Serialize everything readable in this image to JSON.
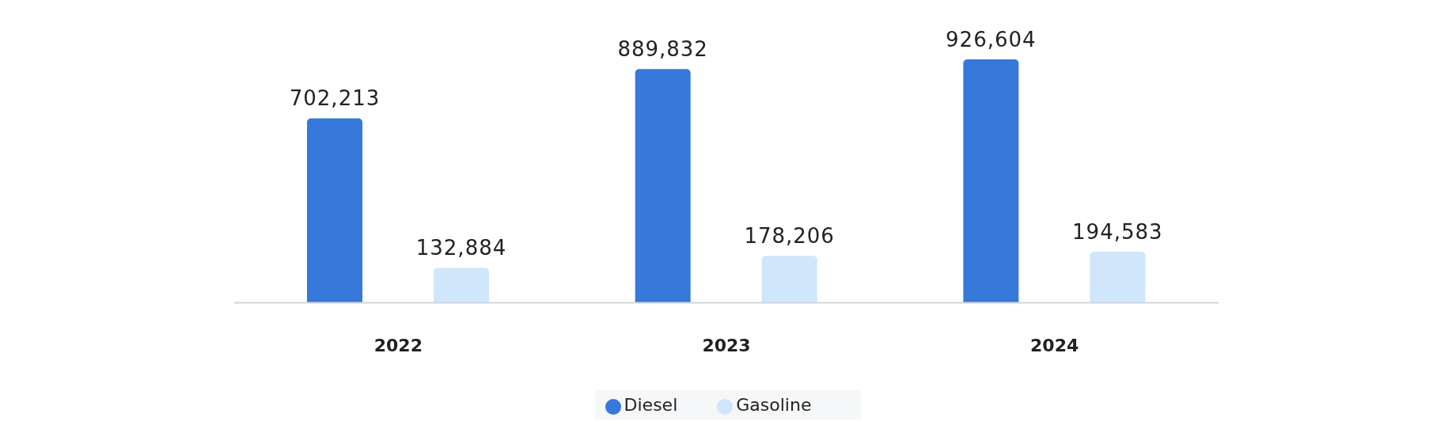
{
  "chart_data": {
    "type": "bar",
    "categories": [
      "2022",
      "2023",
      "2024"
    ],
    "series": [
      {
        "name": "Diesel",
        "color": "#3778db",
        "values": [
          702213,
          889832,
          926604
        ],
        "value_labels": [
          "702,213",
          "889,832",
          "926,604"
        ]
      },
      {
        "name": "Gasoline",
        "color": "#cfe6fb",
        "values": [
          132884,
          178206,
          194583
        ],
        "value_labels": [
          "132,884",
          "178,206",
          "194,583"
        ]
      }
    ],
    "legend": "bottom",
    "grid": false
  }
}
